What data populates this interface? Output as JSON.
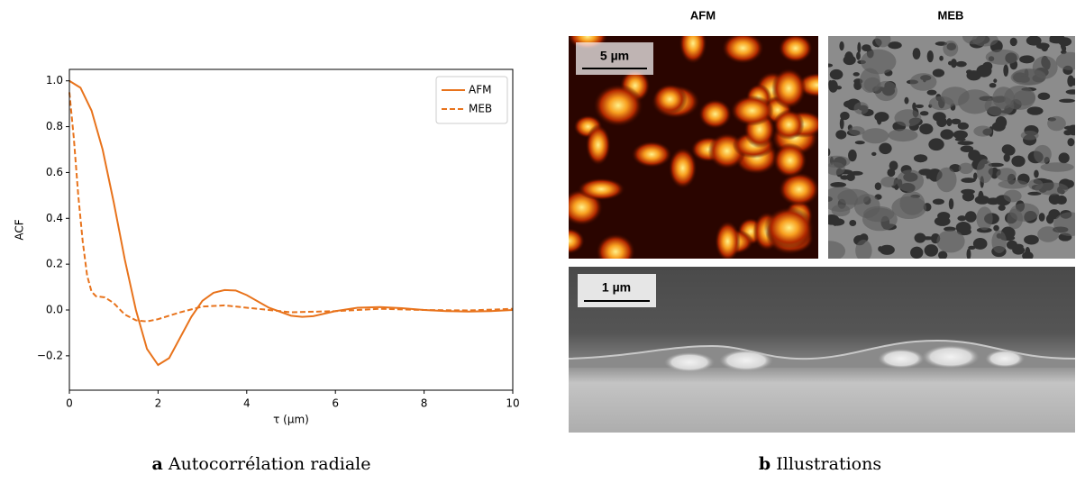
{
  "chart_data": {
    "type": "line",
    "xlabel": "τ (μm)",
    "ylabel": "ACF",
    "xlim": [
      0,
      10
    ],
    "ylim": [
      -0.35,
      1.05
    ],
    "xticks": [
      0,
      2,
      4,
      6,
      8,
      10
    ],
    "yticks": [
      {
        "value": -0.2,
        "label": "−0.2"
      },
      {
        "value": 0,
        "label": "0.0"
      },
      0.2,
      0.4,
      0.6,
      0.8,
      {
        "value": 1,
        "label": "1.0"
      }
    ],
    "legend": "upper right",
    "series": [
      {
        "name": "AFM",
        "color": "#e8731c",
        "style": "solid",
        "x": [
          0,
          0.25,
          0.5,
          0.75,
          1.0,
          1.25,
          1.5,
          1.75,
          2.0,
          2.25,
          2.5,
          2.75,
          3.0,
          3.25,
          3.5,
          3.75,
          4.0,
          4.5,
          5.0,
          5.25,
          5.5,
          6.0,
          6.5,
          7.0,
          7.5,
          8.0,
          8.5,
          9.0,
          9.5,
          10
        ],
        "values": [
          1.0,
          0.97,
          0.87,
          0.7,
          0.47,
          0.22,
          0.0,
          -0.17,
          -0.24,
          -0.21,
          -0.12,
          -0.03,
          0.04,
          0.075,
          0.087,
          0.085,
          0.065,
          0.01,
          -0.025,
          -0.03,
          -0.027,
          -0.005,
          0.01,
          0.013,
          0.008,
          0.0,
          -0.005,
          -0.007,
          -0.005,
          0.0
        ]
      },
      {
        "name": "MEB",
        "color": "#e8731c",
        "style": "dashed",
        "x": [
          0,
          0.1,
          0.2,
          0.3,
          0.4,
          0.5,
          0.6,
          0.8,
          1.0,
          1.25,
          1.5,
          1.75,
          2.0,
          2.5,
          3.0,
          3.5,
          4.0,
          5.0,
          6.0,
          7.0,
          8.0,
          9.0,
          10
        ],
        "values": [
          0.95,
          0.75,
          0.5,
          0.3,
          0.15,
          0.08,
          0.06,
          0.055,
          0.03,
          -0.02,
          -0.045,
          -0.05,
          -0.04,
          -0.01,
          0.015,
          0.02,
          0.01,
          -0.01,
          -0.005,
          0.005,
          0.0,
          -0.002,
          0.005
        ]
      }
    ]
  },
  "images": {
    "afm_title": "AFM",
    "meb_title": "MEB",
    "afm_scale": "5 µm",
    "section_scale": "1 µm"
  },
  "captions": [
    {
      "label": "a",
      "text": "Autocorrélation radiale"
    },
    {
      "label": "b",
      "text": "Illustrations"
    }
  ]
}
